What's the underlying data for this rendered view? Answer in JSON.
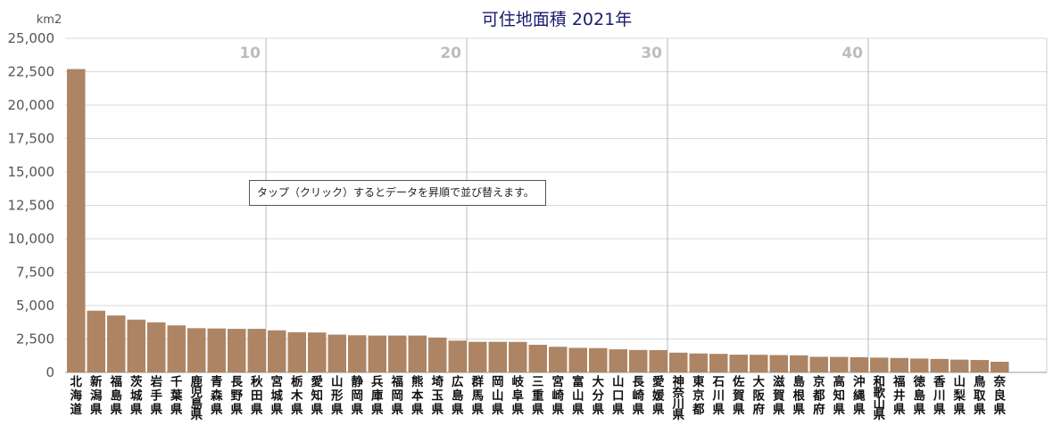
{
  "chart_data": {
    "type": "bar",
    "title": "可住地面積 2021年",
    "unit": "km2",
    "ylim": [
      0,
      25000
    ],
    "yticks": [
      "0",
      "2,500",
      "5,000",
      "7,500",
      "10,000",
      "12,500",
      "15,000",
      "17,500",
      "20,000",
      "22,500",
      "25,000"
    ],
    "rank_labels": [
      "10",
      "20",
      "30",
      "40"
    ],
    "grid": true,
    "bar_color": "#ad8564",
    "categories": [
      "北海道",
      "新潟県",
      "福島県",
      "茨城県",
      "岩手県",
      "千葉県",
      "鹿児島県",
      "青森県",
      "長野県",
      "秋田県",
      "宮城県",
      "栃木県",
      "愛知県",
      "山形県",
      "静岡県",
      "兵庫県",
      "福岡県",
      "熊本県",
      "埼玉県",
      "広島県",
      "群馬県",
      "岡山県",
      "岐阜県",
      "三重県",
      "宮崎県",
      "富山県",
      "大分県",
      "山口県",
      "長崎県",
      "愛媛県",
      "神奈川県",
      "東京都",
      "石川県",
      "佐賀県",
      "大阪府",
      "滋賀県",
      "島根県",
      "京都府",
      "高知県",
      "沖縄県",
      "和歌山県",
      "福井県",
      "徳島県",
      "香川県",
      "山梨県",
      "鳥取県",
      "奈良県"
    ],
    "values": [
      22700,
      4620,
      4260,
      3950,
      3750,
      3520,
      3310,
      3290,
      3260,
      3260,
      3150,
      3010,
      2990,
      2830,
      2780,
      2760,
      2760,
      2760,
      2610,
      2380,
      2290,
      2290,
      2280,
      2070,
      1920,
      1840,
      1820,
      1730,
      1680,
      1670,
      1480,
      1420,
      1390,
      1330,
      1320,
      1300,
      1280,
      1170,
      1160,
      1140,
      1110,
      1080,
      1040,
      1010,
      960,
      930,
      800
    ]
  },
  "tooltip": {
    "text": "タップ（クリック）するとデータを昇順で並び替えます。"
  }
}
